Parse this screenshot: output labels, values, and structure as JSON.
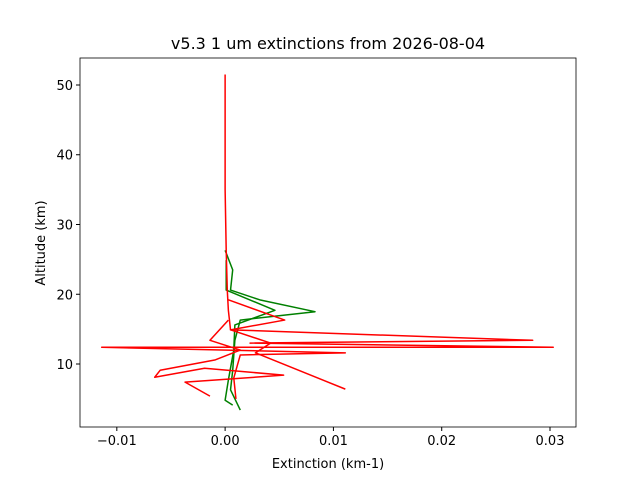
{
  "chart_data": {
    "type": "line",
    "title": "v5.3 1 um extinctions from 2026-08-04",
    "xlabel": "Extinction (km-1)",
    "ylabel": "Altitude (km)",
    "xlim": [
      -0.0134,
      0.0324
    ],
    "ylim": [
      0.97,
      53.87
    ],
    "xticks": [
      {
        "value": -0.01,
        "label": "−0.01"
      },
      {
        "value": 0,
        "label": "0.00"
      },
      {
        "value": 0.01,
        "label": "0.01"
      },
      {
        "value": 0.02,
        "label": "0.02"
      },
      {
        "value": 0.03,
        "label": "0.03"
      }
    ],
    "yticks": [
      10,
      20,
      30,
      40,
      50
    ],
    "grid": false,
    "series": [
      {
        "color": "#008000",
        "x": [
          0.0,
          0.0007,
          0.0005,
          0.0032,
          0.0083,
          0.0014,
          0.0009,
          0.0007,
          0.0005,
          0.0014
        ],
        "y": [
          26.3,
          23.5,
          20.6,
          19.2,
          17.5,
          16.3,
          13.4,
          9.1,
          6.3,
          3.4
        ]
      },
      {
        "color": "#008000",
        "x": [
          0.0001,
          0.0001,
          0.0046,
          0.0009,
          0.0008,
          0.0003,
          0.0,
          0.0007
        ],
        "y": [
          24.9,
          20.6,
          17.7,
          15.6,
          12.0,
          7.7,
          4.8,
          4.1
        ]
      },
      {
        "color": "#ff0000",
        "x": [
          0.0,
          0.0,
          0.0001,
          0.0002,
          0.0003,
          0.0005,
          0.0284,
          0.0023,
          0.0303,
          -0.0114,
          0.0111,
          0.0014,
          0.0008,
          0.001
        ],
        "y": [
          51.5,
          35.0,
          26.3,
          20.6,
          17.7,
          14.9,
          13.4,
          13.0,
          12.4,
          12.4,
          11.6,
          11.3,
          8.0,
          5.0
        ]
      },
      {
        "color": "#ff0000",
        "x": [
          0.0003,
          -0.0014,
          0.0014,
          -0.0009,
          -0.006,
          -0.0065,
          -0.0019,
          0.0054,
          -0.0037,
          -0.0014
        ],
        "y": [
          16.3,
          13.4,
          12.0,
          10.6,
          9.1,
          8.1,
          9.4,
          8.4,
          7.4,
          5.4
        ]
      },
      {
        "color": "#ff0000",
        "x": [
          0.0003,
          0.0055,
          0.0005,
          0.0042,
          0.0028,
          0.0111
        ],
        "y": [
          19.2,
          16.3,
          14.9,
          13.0,
          11.6,
          6.4
        ]
      }
    ]
  }
}
